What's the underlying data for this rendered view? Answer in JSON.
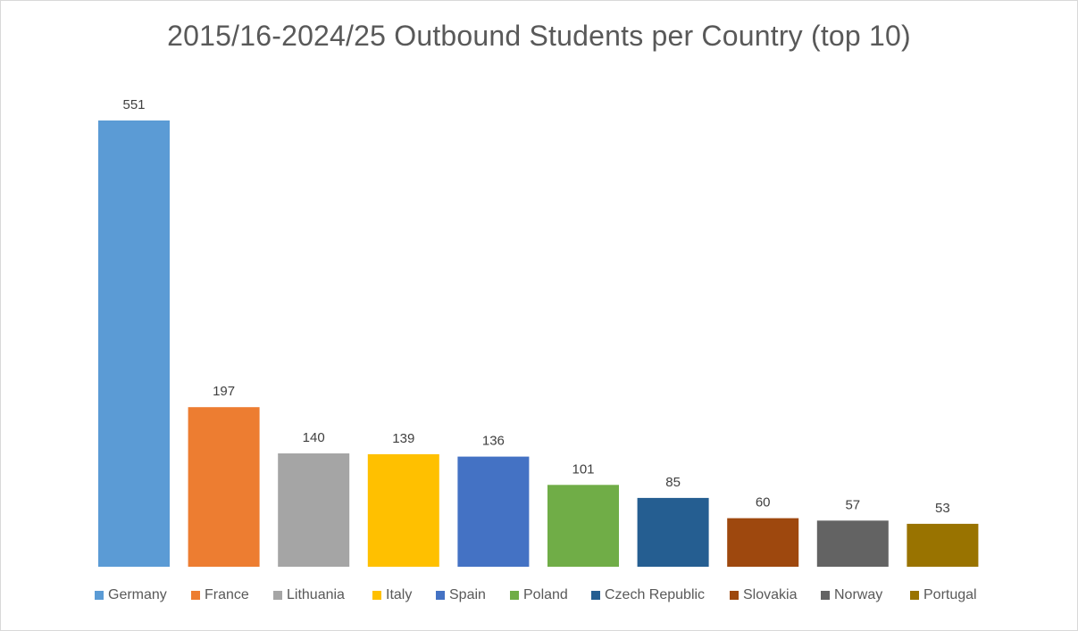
{
  "chart_data": {
    "type": "bar",
    "title": "2015/16-2024/25 Outbound Students per Country (top 10)",
    "categories": [
      "Germany",
      "France",
      "Lithuania",
      "Italy",
      "Spain",
      "Poland",
      "Czech Republic",
      "Slovakia",
      "Norway",
      "Portugal"
    ],
    "values": [
      551,
      197,
      140,
      139,
      136,
      101,
      85,
      60,
      57,
      53
    ],
    "colors": [
      "#5b9bd5",
      "#ed7d31",
      "#a5a5a5",
      "#ffc000",
      "#4472c4",
      "#70ad47",
      "#255e91",
      "#9e480e",
      "#636363",
      "#997300"
    ],
    "data_labels": true,
    "ylim": [
      0,
      551
    ],
    "grid": false,
    "legend_position": "bottom",
    "xlabel": "",
    "ylabel": ""
  }
}
